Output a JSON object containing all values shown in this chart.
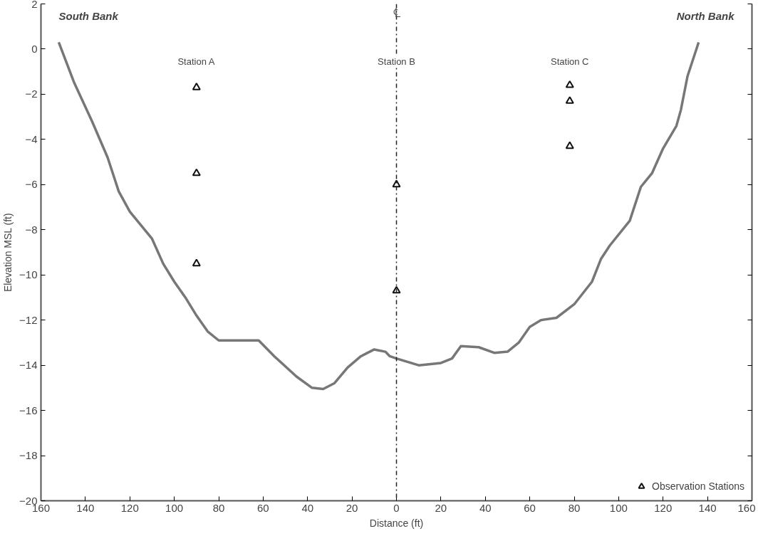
{
  "chart_data": {
    "type": "line",
    "xlabel": "Distance (ft)",
    "ylabel": "Elevation MSL (ft)",
    "xlim": [
      -160,
      160
    ],
    "ylim": [
      -20,
      2
    ],
    "xticks": [
      {
        "value": -160,
        "label": "160"
      },
      {
        "value": -140,
        "label": "140"
      },
      {
        "value": -120,
        "label": "120"
      },
      {
        "value": -100,
        "label": "100"
      },
      {
        "value": -80,
        "label": "80"
      },
      {
        "value": -60,
        "label": "60"
      },
      {
        "value": -40,
        "label": "40"
      },
      {
        "value": -20,
        "label": "20"
      },
      0,
      20,
      40,
      60,
      80,
      100,
      120,
      140,
      160
    ],
    "yticks": [
      -20,
      -18,
      -16,
      -14,
      -12,
      -10,
      -8,
      -6,
      -4,
      -2,
      0,
      2
    ],
    "grid": false,
    "legend": "bottom right",
    "series": [
      {
        "color": "#777777",
        "line_style": "solid",
        "marker": "none",
        "x": [
          -152,
          -145,
          -137,
          -130,
          -125,
          -120,
          -115,
          -110,
          -105,
          -100,
          -95,
          -90,
          -85,
          -80,
          -70,
          -62,
          -55,
          -45,
          -38,
          -33,
          -28,
          -22,
          -16,
          -10,
          -5,
          -3,
          0,
          5,
          10,
          20,
          25,
          29,
          37,
          44,
          50,
          55,
          60,
          65,
          72,
          80,
          88,
          92,
          96,
          105,
          110,
          115,
          120,
          126,
          128,
          131,
          136
        ],
        "values": [
          0.3,
          -1.5,
          -3.2,
          -4.8,
          -6.3,
          -7.2,
          -7.8,
          -8.4,
          -9.5,
          -10.3,
          -11,
          -11.8,
          -12.5,
          -12.9,
          -12.9,
          -12.9,
          -13.6,
          -14.5,
          -15,
          -15.05,
          -14.8,
          -14.1,
          -13.6,
          -13.3,
          -13.4,
          -13.6,
          -13.7,
          -13.85,
          -14,
          -13.9,
          -13.7,
          -13.15,
          -13.2,
          -13.45,
          -13.4,
          -13,
          -12.3,
          -12,
          -11.9,
          -11.3,
          -10.3,
          -9.3,
          -8.7,
          -7.6,
          -6.1,
          -5.5,
          -4.4,
          -3.4,
          -2.7,
          -1.2,
          0.3
        ]
      },
      {
        "type": "scatter",
        "name": "Observation Stations",
        "color": "#111111",
        "marker": "triangle",
        "x": [
          -90,
          -90,
          -90,
          0,
          0,
          78,
          78,
          78
        ],
        "values": [
          -1.7,
          -5.5,
          -9.5,
          -6,
          -10.7,
          -1.6,
          -2.3,
          -4.3
        ]
      }
    ],
    "ref_lines": [
      {
        "axis": "x",
        "value": 0,
        "label": "℄",
        "color": "#222222",
        "line_style": "dashdot"
      }
    ],
    "annotations": [
      "South Bank",
      "North Bank",
      "Station A",
      "Station B",
      "Station C"
    ]
  }
}
